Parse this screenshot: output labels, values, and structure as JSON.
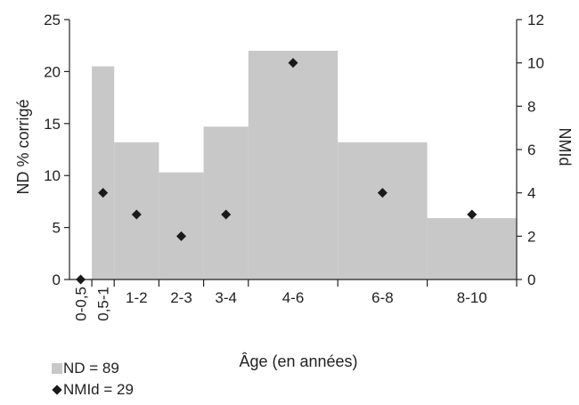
{
  "chart_data": {
    "type": "bar",
    "x_axis_label": "Âge (en années)",
    "y_left_label": "ND % corrigé",
    "y_right_label": "NMId",
    "y_left_range": [
      0,
      25
    ],
    "y_left_ticks": [
      "0",
      "5",
      "10",
      "15",
      "20",
      "25"
    ],
    "y_right_range": [
      0,
      12
    ],
    "y_right_ticks": [
      "0",
      "2",
      "4",
      "6",
      "8",
      "10",
      "12"
    ],
    "x_tick_labels": [
      {
        "label": "0-0,5",
        "x": 0.25,
        "rotated": true
      },
      {
        "label": "0,5-1",
        "x": 0.75,
        "rotated": true
      },
      {
        "label": "1-2",
        "x": 1.5,
        "rotated": false
      },
      {
        "label": "2-3",
        "x": 2.5,
        "rotated": false
      },
      {
        "label": "3-4",
        "x": 3.5,
        "rotated": false
      },
      {
        "label": "4-6",
        "x": 5,
        "rotated": false
      },
      {
        "label": "6-8",
        "x": 7,
        "rotated": false
      },
      {
        "label": "8-10",
        "x": 9,
        "rotated": false
      }
    ],
    "x_tick_marks": [
      0.5,
      1,
      2,
      3,
      4,
      6,
      8,
      10
    ],
    "bars": [
      {
        "from": 0,
        "to": 0.5,
        "value": 0
      },
      {
        "from": 0.5,
        "to": 1,
        "value": 20.5
      },
      {
        "from": 1,
        "to": 2,
        "value": 13.2
      },
      {
        "from": 2,
        "to": 3,
        "value": 10.3
      },
      {
        "from": 3,
        "to": 4,
        "value": 14.7
      },
      {
        "from": 4,
        "to": 6,
        "value": 22
      },
      {
        "from": 6,
        "to": 8,
        "value": 13.2
      },
      {
        "from": 8,
        "to": 10,
        "value": 5.9
      }
    ],
    "points": [
      {
        "x": 0.25,
        "value": 0
      },
      {
        "x": 0.75,
        "value": 4
      },
      {
        "x": 1.5,
        "value": 3
      },
      {
        "x": 2.5,
        "value": 2
      },
      {
        "x": 3.5,
        "value": 3
      },
      {
        "x": 5,
        "value": 10
      },
      {
        "x": 7,
        "value": 4
      },
      {
        "x": 9,
        "value": 3
      }
    ],
    "legend": [
      {
        "label": "ND = 89",
        "marker": "square",
        "color": "#c8c8c8"
      },
      {
        "label": "NMId = 29",
        "marker": "diamond",
        "color": "#1a1a1a"
      }
    ],
    "colors": {
      "bars": "#c8c8c8",
      "points": "#1a1a1a",
      "axis": "#222222"
    }
  }
}
